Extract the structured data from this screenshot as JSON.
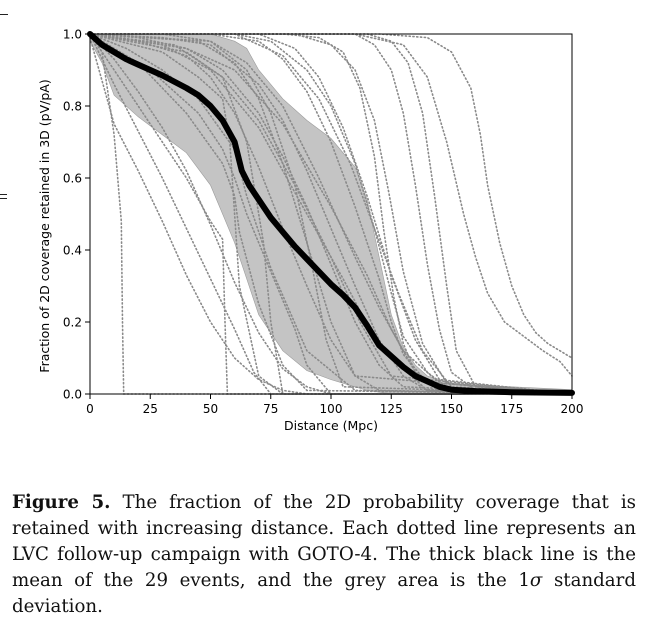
{
  "chart_data": {
    "type": "line",
    "xlabel": "Distance (Mpc)",
    "ylabel": "Fraction of 2D coverage retained in 3D (pV/pA)",
    "xlim": [
      0,
      200
    ],
    "ylim": [
      0,
      1.0
    ],
    "x_ticks": [
      "0",
      "25",
      "50",
      "75",
      "100",
      "125",
      "150",
      "175",
      "200"
    ],
    "y_ticks": [
      "0.0",
      "0.2",
      "0.4",
      "0.6",
      "0.8",
      "1.0"
    ],
    "grid": false,
    "legend": "none",
    "colors": {
      "mean": "#000000",
      "band": "#c4c4c4",
      "events": "#8a8a8a"
    },
    "mean_line": {
      "x": [
        0,
        5,
        10,
        15,
        20,
        30,
        40,
        45,
        50,
        55,
        60,
        63,
        66,
        70,
        75,
        80,
        85,
        90,
        95,
        100,
        105,
        110,
        115,
        120,
        125,
        130,
        135,
        140,
        145,
        150,
        160,
        175,
        200
      ],
      "y": [
        1.0,
        0.97,
        0.95,
        0.93,
        0.915,
        0.885,
        0.85,
        0.83,
        0.8,
        0.76,
        0.7,
        0.62,
        0.58,
        0.54,
        0.49,
        0.45,
        0.41,
        0.375,
        0.34,
        0.305,
        0.275,
        0.24,
        0.19,
        0.135,
        0.105,
        0.075,
        0.05,
        0.035,
        0.02,
        0.012,
        0.008,
        0.005,
        0.003
      ]
    },
    "std_band": {
      "x": [
        0,
        5,
        10,
        20,
        30,
        40,
        50,
        55,
        60,
        65,
        70,
        75,
        80,
        90,
        100,
        110,
        115,
        120,
        125,
        130,
        135,
        140,
        150,
        160,
        175,
        200
      ],
      "upper": [
        1.0,
        1.0,
        1.0,
        1.0,
        1.0,
        1.0,
        1.0,
        0.99,
        0.98,
        0.96,
        0.9,
        0.86,
        0.82,
        0.76,
        0.71,
        0.63,
        0.54,
        0.38,
        0.22,
        0.13,
        0.08,
        0.05,
        0.03,
        0.025,
        0.02,
        0.012
      ],
      "lower": [
        0.98,
        0.92,
        0.83,
        0.77,
        0.72,
        0.67,
        0.58,
        0.5,
        0.42,
        0.32,
        0.22,
        0.17,
        0.12,
        0.065,
        0.04,
        0.02,
        0.01,
        0.005,
        0,
        0,
        0,
        0,
        0,
        0,
        0,
        0
      ]
    },
    "events": [
      {
        "x": [
          0,
          5,
          10,
          13,
          13.5,
          14,
          200
        ],
        "y": [
          1.0,
          0.95,
          0.72,
          0.48,
          0.2,
          0.0,
          0.0
        ]
      },
      {
        "x": [
          0,
          10,
          20,
          30,
          40,
          50,
          60,
          70,
          80,
          90,
          200
        ],
        "y": [
          0.99,
          0.75,
          0.62,
          0.48,
          0.33,
          0.2,
          0.1,
          0.04,
          0.01,
          0.0,
          0.0
        ]
      },
      {
        "x": [
          0,
          10,
          20,
          30,
          40,
          50,
          55,
          56,
          57,
          200
        ],
        "y": [
          1.0,
          0.9,
          0.8,
          0.7,
          0.6,
          0.48,
          0.43,
          0.2,
          0.0,
          0.0
        ]
      },
      {
        "x": [
          0,
          10,
          20,
          30,
          40,
          50,
          60,
          70,
          80,
          90,
          100,
          200
        ],
        "y": [
          1.0,
          0.93,
          0.84,
          0.74,
          0.62,
          0.47,
          0.31,
          0.17,
          0.07,
          0.02,
          0.0,
          0.0
        ]
      },
      {
        "x": [
          0,
          15,
          30,
          45,
          60,
          65,
          75,
          90,
          110,
          200
        ],
        "y": [
          1.0,
          0.96,
          0.9,
          0.82,
          0.68,
          0.55,
          0.35,
          0.12,
          0.01,
          0.0
        ]
      },
      {
        "x": [
          0,
          20,
          40,
          50,
          60,
          70,
          80,
          90,
          100,
          110,
          120,
          200
        ],
        "y": [
          1.0,
          0.98,
          0.94,
          0.88,
          0.78,
          0.63,
          0.46,
          0.3,
          0.15,
          0.05,
          0.01,
          0.0
        ]
      },
      {
        "x": [
          0,
          20,
          40,
          55,
          70,
          80,
          90,
          100,
          110,
          120,
          130,
          200
        ],
        "y": [
          1.0,
          0.99,
          0.96,
          0.9,
          0.78,
          0.66,
          0.52,
          0.36,
          0.2,
          0.08,
          0.02,
          0.0
        ]
      },
      {
        "x": [
          0,
          30,
          50,
          70,
          80,
          90,
          100,
          110,
          120,
          130,
          140,
          200
        ],
        "y": [
          1.0,
          0.99,
          0.97,
          0.86,
          0.76,
          0.62,
          0.46,
          0.3,
          0.15,
          0.05,
          0.01,
          0.0
        ]
      },
      {
        "x": [
          0,
          30,
          50,
          65,
          80,
          95,
          110,
          120,
          130,
          145,
          200
        ],
        "y": [
          1.0,
          1.0,
          0.98,
          0.92,
          0.8,
          0.6,
          0.38,
          0.24,
          0.12,
          0.03,
          0.0
        ]
      },
      {
        "x": [
          0,
          50,
          70,
          80,
          90,
          100,
          110,
          120,
          125,
          130,
          140,
          150,
          200
        ],
        "y": [
          1.0,
          1.0,
          0.98,
          0.93,
          0.84,
          0.7,
          0.52,
          0.32,
          0.2,
          0.11,
          0.03,
          0.005,
          0.0
        ]
      },
      {
        "x": [
          0,
          60,
          75,
          90,
          100,
          110,
          118,
          125,
          130,
          140,
          150,
          200
        ],
        "y": [
          1.0,
          1.0,
          0.98,
          0.9,
          0.8,
          0.64,
          0.46,
          0.28,
          0.16,
          0.06,
          0.01,
          0.0
        ]
      },
      {
        "x": [
          0,
          80,
          95,
          105,
          112,
          118,
          122,
          126,
          130,
          135,
          145,
          200
        ],
        "y": [
          1.0,
          1.0,
          0.99,
          0.95,
          0.85,
          0.66,
          0.45,
          0.27,
          0.14,
          0.06,
          0.01,
          0.0
        ]
      },
      {
        "x": [
          0,
          90,
          110,
          118,
          125,
          130,
          135,
          140,
          145,
          150,
          160,
          200
        ],
        "y": [
          1.0,
          1.0,
          1.0,
          0.97,
          0.9,
          0.78,
          0.58,
          0.36,
          0.18,
          0.06,
          0.01,
          0.0
        ]
      },
      {
        "x": [
          0,
          100,
          115,
          125,
          132,
          138,
          143,
          148,
          152,
          160,
          200
        ],
        "y": [
          1.0,
          1.0,
          1.0,
          0.98,
          0.92,
          0.78,
          0.55,
          0.3,
          0.12,
          0.02,
          0.0
        ]
      },
      {
        "x": [
          0,
          120,
          140,
          150,
          158,
          162,
          165,
          170,
          175,
          180,
          185,
          190,
          195,
          200
        ],
        "y": [
          1.0,
          1.0,
          0.99,
          0.95,
          0.85,
          0.72,
          0.58,
          0.42,
          0.3,
          0.22,
          0.17,
          0.14,
          0.12,
          0.1
        ]
      },
      {
        "x": [
          0,
          110,
          130,
          140,
          148,
          155,
          160,
          165,
          172,
          180,
          188,
          195,
          200
        ],
        "y": [
          1.0,
          1.0,
          0.97,
          0.88,
          0.7,
          0.5,
          0.38,
          0.28,
          0.2,
          0.16,
          0.12,
          0.09,
          0.05
        ]
      },
      {
        "x": [
          0,
          25,
          45,
          55,
          60,
          65,
          75,
          85,
          90,
          100,
          200
        ],
        "y": [
          1.0,
          0.9,
          0.78,
          0.68,
          0.6,
          0.5,
          0.34,
          0.18,
          0.08,
          0.0,
          0.0
        ]
      },
      {
        "x": [
          0,
          20,
          40,
          55,
          60,
          62,
          70,
          80,
          90,
          200
        ],
        "y": [
          1.0,
          0.92,
          0.78,
          0.64,
          0.55,
          0.45,
          0.25,
          0.08,
          0.01,
          0.0
        ]
      },
      {
        "x": [
          0,
          40,
          60,
          80,
          100,
          115,
          125,
          135,
          145,
          200
        ],
        "y": [
          1.0,
          0.96,
          0.9,
          0.75,
          0.52,
          0.33,
          0.18,
          0.06,
          0.01,
          0.0
        ]
      },
      {
        "x": [
          0,
          30,
          50,
          70,
          90,
          105,
          120,
          140,
          200
        ],
        "y": [
          1.0,
          0.97,
          0.9,
          0.74,
          0.5,
          0.32,
          0.13,
          0.01,
          0.0
        ]
      },
      {
        "x": [
          0,
          40,
          55,
          65,
          72,
          75,
          80,
          200
        ],
        "y": [
          1.0,
          0.95,
          0.88,
          0.7,
          0.42,
          0.2,
          0.0,
          0.0
        ]
      },
      {
        "x": [
          0,
          30,
          45,
          55,
          58,
          62,
          70,
          80,
          200
        ],
        "y": [
          1.0,
          0.95,
          0.88,
          0.82,
          0.7,
          0.3,
          0.05,
          0.0,
          0.0
        ]
      },
      {
        "x": [
          0,
          70,
          85,
          95,
          105,
          115,
          125,
          135,
          145,
          200
        ],
        "y": [
          1.0,
          1.0,
          0.96,
          0.88,
          0.74,
          0.55,
          0.33,
          0.15,
          0.04,
          0.0
        ]
      },
      {
        "x": [
          0,
          45,
          60,
          70,
          80,
          90,
          100,
          110,
          200
        ],
        "y": [
          1.0,
          0.98,
          0.92,
          0.82,
          0.64,
          0.42,
          0.2,
          0.05,
          0.0
        ]
      },
      {
        "x": [
          0,
          10,
          20,
          30,
          40,
          50,
          60,
          68,
          75,
          200
        ],
        "y": [
          1.0,
          0.86,
          0.73,
          0.6,
          0.46,
          0.32,
          0.18,
          0.06,
          0.0,
          0.0
        ]
      },
      {
        "x": [
          0,
          60,
          80,
          95,
          108,
          118,
          128,
          138,
          150,
          200
        ],
        "y": [
          1.0,
          1.0,
          0.94,
          0.82,
          0.64,
          0.46,
          0.28,
          0.12,
          0.02,
          0.0
        ]
      },
      {
        "x": [
          0,
          35,
          55,
          70,
          85,
          100,
          112,
          125,
          200
        ],
        "y": [
          1.0,
          0.97,
          0.88,
          0.76,
          0.58,
          0.38,
          0.2,
          0.05,
          0.0
        ]
      },
      {
        "x": [
          0,
          50,
          65,
          75,
          85,
          92,
          98,
          105,
          200
        ],
        "y": [
          1.0,
          0.98,
          0.9,
          0.78,
          0.58,
          0.36,
          0.15,
          0.02,
          0.0
        ]
      },
      {
        "x": [
          0,
          85,
          100,
          110,
          118,
          124,
          130,
          138,
          148,
          200
        ],
        "y": [
          1.0,
          1.0,
          0.97,
          0.9,
          0.76,
          0.56,
          0.34,
          0.14,
          0.03,
          0.0
        ]
      }
    ]
  },
  "caption": {
    "label": "Figure 5.",
    "text": " The fraction of the 2D probability coverage that is retained with increasing distance. Each dotted line represents an LVC follow-up campaign with GOTO-4. The thick black line is the mean of the 29 events, and the grey area is the 1",
    "sigma": "σ",
    "text_end": " standard deviation."
  }
}
